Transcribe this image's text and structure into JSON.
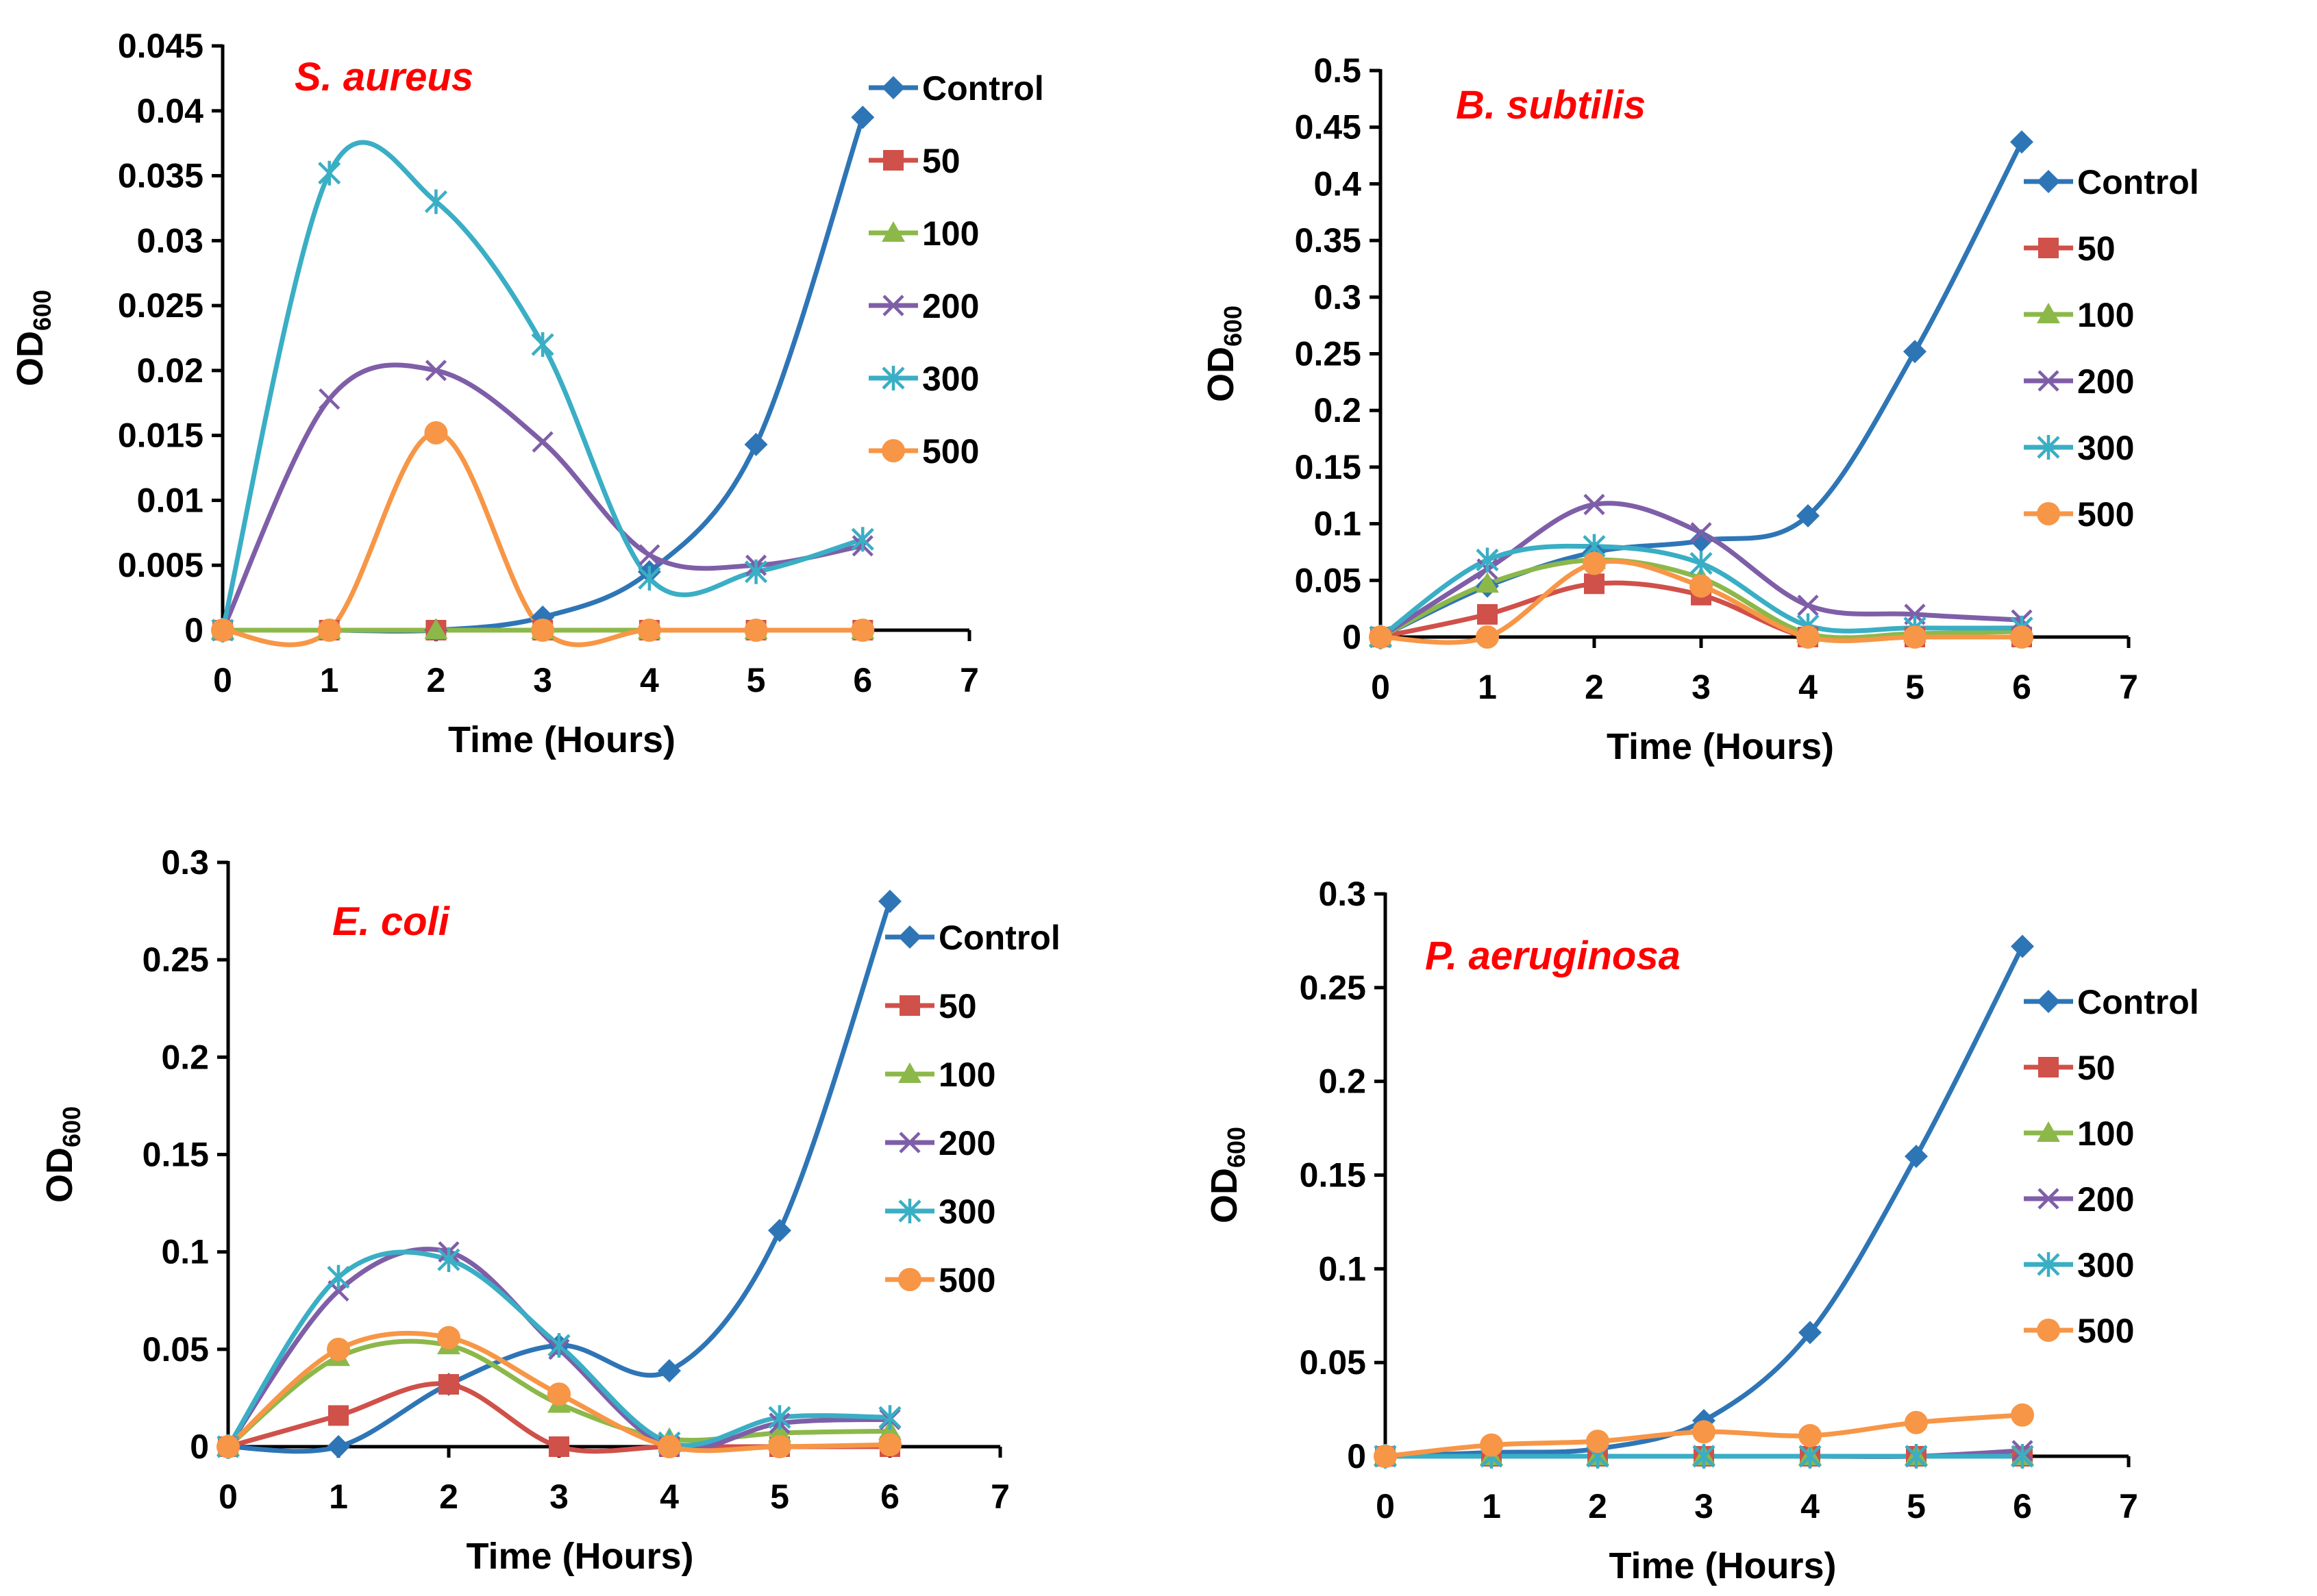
{
  "colors": {
    "Control": "#2e75b6",
    "50": "#d0504a",
    "100": "#8cb84a",
    "200": "#7f5ea8",
    "300": "#3aaec4",
    "500": "#f79646",
    "organism": "#ff0000"
  },
  "chart_data": [
    {
      "id": "s_aureus",
      "type": "line",
      "title": "S. aureus",
      "xlabel": "Time (Hours)",
      "ylabel": "OD",
      "ylabel_sub": "600",
      "xlim": [
        0,
        7
      ],
      "ylim": [
        0,
        0.045
      ],
      "xticks": [
        "0",
        "1",
        "2",
        "3",
        "4",
        "5",
        "6",
        "7"
      ],
      "yticks": [
        "0",
        "0.005",
        "0.01",
        "0.015",
        "0.02",
        "0.025",
        "0.03",
        "0.035",
        "0.04",
        "0.045"
      ],
      "x": [
        0,
        1,
        2,
        3,
        4,
        5,
        6
      ],
      "series": [
        {
          "name": "Control",
          "marker": "diamond",
          "values": [
            0,
            0,
            0,
            0.001,
            0.0045,
            0.0143,
            0.0395
          ]
        },
        {
          "name": "50",
          "marker": "square",
          "values": [
            0,
            0,
            0,
            0,
            0,
            0,
            0
          ]
        },
        {
          "name": "100",
          "marker": "triangle",
          "values": [
            0,
            0,
            0,
            0,
            0,
            0,
            0
          ]
        },
        {
          "name": "200",
          "marker": "x",
          "values": [
            0,
            0.0178,
            0.02,
            0.0145,
            0.0058,
            0.005,
            0.0065
          ]
        },
        {
          "name": "300",
          "marker": "star",
          "values": [
            0,
            0.0352,
            0.033,
            0.022,
            0.004,
            0.0045,
            0.007
          ]
        },
        {
          "name": "500",
          "marker": "circle",
          "values": [
            0,
            0,
            0.0152,
            0,
            0,
            0,
            0
          ]
        }
      ]
    },
    {
      "id": "b_subtilis",
      "type": "line",
      "title": "B. subtilis",
      "xlabel": "Time (Hours)",
      "ylabel": "OD",
      "ylabel_sub": "600",
      "xlim": [
        0,
        7
      ],
      "ylim": [
        0,
        0.5
      ],
      "xticks": [
        "0",
        "1",
        "2",
        "3",
        "4",
        "5",
        "6",
        "7"
      ],
      "yticks": [
        "0",
        "0.05",
        "0.1",
        "0.15",
        "0.2",
        "0.25",
        "0.3",
        "0.35",
        "0.4",
        "0.45",
        "0.5"
      ],
      "x": [
        0,
        1,
        2,
        3,
        4,
        5,
        6
      ],
      "series": [
        {
          "name": "Control",
          "marker": "diamond",
          "values": [
            0,
            0.045,
            0.075,
            0.085,
            0.107,
            0.252,
            0.437
          ]
        },
        {
          "name": "50",
          "marker": "square",
          "values": [
            0,
            0.02,
            0.047,
            0.037,
            0,
            0,
            0
          ]
        },
        {
          "name": "100",
          "marker": "triangle",
          "values": [
            0,
            0.047,
            0.068,
            0.052,
            0.003,
            0.003,
            0.005
          ]
        },
        {
          "name": "200",
          "marker": "x",
          "values": [
            0,
            0.06,
            0.117,
            0.092,
            0.028,
            0.02,
            0.015
          ]
        },
        {
          "name": "300",
          "marker": "star",
          "values": [
            0,
            0.068,
            0.08,
            0.065,
            0.01,
            0.008,
            0.008
          ]
        },
        {
          "name": "500",
          "marker": "circle",
          "values": [
            0,
            0,
            0.065,
            0.045,
            0,
            0,
            0
          ]
        }
      ]
    },
    {
      "id": "e_coli",
      "type": "line",
      "title": "E. coli",
      "xlabel": "Time (Hours)",
      "ylabel": "OD",
      "ylabel_sub": "600",
      "xlim": [
        0,
        7
      ],
      "ylim": [
        0,
        0.3
      ],
      "xticks": [
        "0",
        "1",
        "2",
        "3",
        "4",
        "5",
        "6",
        "7"
      ],
      "yticks": [
        "0",
        "0.05",
        "0.1",
        "0.15",
        "0.2",
        "0.25",
        "0.3"
      ],
      "x": [
        0,
        1,
        2,
        3,
        4,
        5,
        6
      ],
      "series": [
        {
          "name": "Control",
          "marker": "diamond",
          "values": [
            0,
            0,
            0.032,
            0.052,
            0.039,
            0.111,
            0.28
          ]
        },
        {
          "name": "50",
          "marker": "square",
          "values": [
            0,
            0.016,
            0.032,
            0,
            0,
            0,
            0
          ]
        },
        {
          "name": "100",
          "marker": "triangle",
          "values": [
            0,
            0.046,
            0.052,
            0.022,
            0.004,
            0.007,
            0.008
          ]
        },
        {
          "name": "200",
          "marker": "x",
          "values": [
            0,
            0.08,
            0.1,
            0.05,
            0,
            0.012,
            0.014
          ]
        },
        {
          "name": "300",
          "marker": "star",
          "values": [
            0,
            0.087,
            0.096,
            0.052,
            0.002,
            0.015,
            0.015
          ]
        },
        {
          "name": "500",
          "marker": "circle",
          "values": [
            0,
            0.05,
            0.056,
            0.027,
            0,
            0,
            0.001
          ]
        }
      ]
    },
    {
      "id": "p_aeruginosa",
      "type": "line",
      "title": "P. aeruginosa",
      "xlabel": "Time (Hours)",
      "ylabel": "OD",
      "ylabel_sub": "600",
      "xlim": [
        0,
        7
      ],
      "ylim": [
        0,
        0.3
      ],
      "xticks": [
        "0",
        "1",
        "2",
        "3",
        "4",
        "5",
        "6",
        "7"
      ],
      "yticks": [
        "0",
        "0.05",
        "0.1",
        "0.15",
        "0.2",
        "0.25",
        "0.3"
      ],
      "x": [
        0,
        1,
        2,
        3,
        4,
        5,
        6
      ],
      "series": [
        {
          "name": "Control",
          "marker": "diamond",
          "values": [
            0,
            0.002,
            0.004,
            0.019,
            0.066,
            0.16,
            0.272
          ]
        },
        {
          "name": "50",
          "marker": "square",
          "values": [
            0,
            0,
            0,
            0,
            0,
            0,
            0
          ]
        },
        {
          "name": "100",
          "marker": "triangle",
          "values": [
            0,
            0,
            0,
            0,
            0,
            0,
            0
          ]
        },
        {
          "name": "200",
          "marker": "x",
          "values": [
            0,
            0,
            0,
            0,
            0,
            0,
            0.003
          ]
        },
        {
          "name": "300",
          "marker": "star",
          "values": [
            0,
            0,
            0,
            0,
            0,
            0,
            0
          ]
        },
        {
          "name": "500",
          "marker": "circle",
          "values": [
            0,
            0.006,
            0.008,
            0.013,
            0.011,
            0.018,
            0.022
          ]
        }
      ]
    }
  ]
}
